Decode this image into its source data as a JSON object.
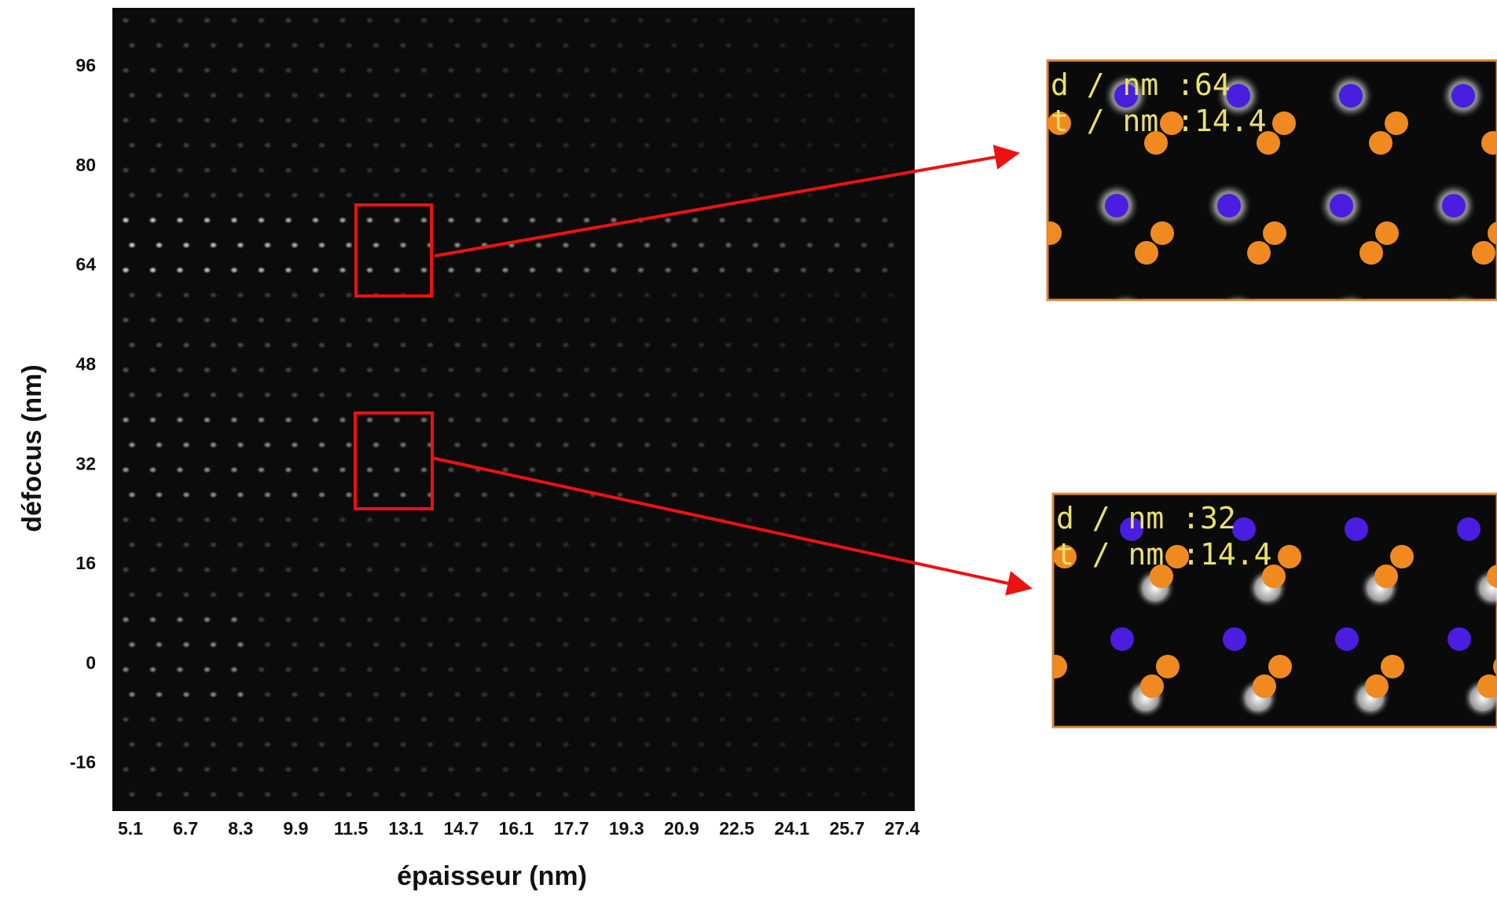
{
  "figure": {
    "y_axis": {
      "label": "défocus (nm)",
      "ticks": [
        96,
        80,
        64,
        48,
        32,
        16,
        0,
        -16
      ]
    },
    "x_axis": {
      "label": "épaisseur (nm)",
      "ticks": [
        5.1,
        6.7,
        8.3,
        9.9,
        11.5,
        13.1,
        14.7,
        16.1,
        17.7,
        19.3,
        20.9,
        22.5,
        24.1,
        25.7,
        27.4
      ]
    },
    "insets": [
      {
        "lines": [
          "d / nm :64",
          "t / nm :14.4"
        ]
      },
      {
        "lines": [
          "d / nm :32",
          "t / nm :14.4"
        ]
      }
    ]
  }
}
